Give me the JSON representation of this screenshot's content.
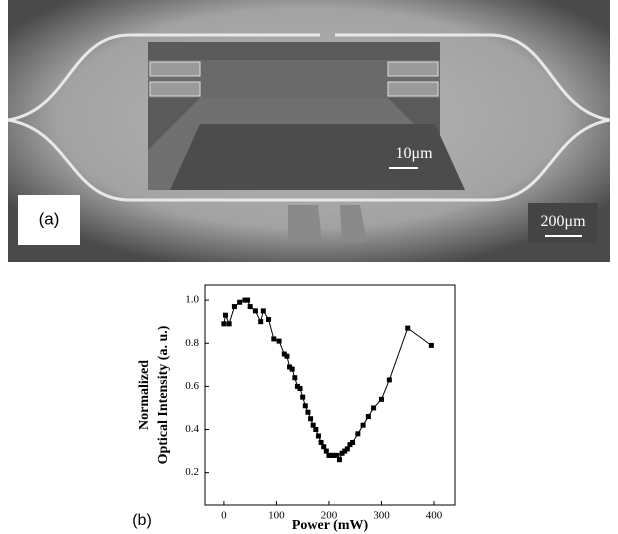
{
  "image": {
    "panel_label": "(a)",
    "inset_scale_label": "10μm",
    "scale_label": "200μm"
  },
  "chart_data": {
    "type": "line",
    "panel_label": "(b)",
    "xlabel": "Power (mW)",
    "ylabel": [
      "Normalized",
      "Optical Intensity (a. u.)"
    ],
    "x": [
      0,
      3,
      10,
      20,
      30,
      40,
      45,
      50,
      60,
      70,
      75,
      85,
      95,
      105,
      115,
      120,
      125,
      130,
      135,
      140,
      145,
      150,
      155,
      160,
      165,
      170,
      175,
      180,
      185,
      190,
      195,
      200,
      205,
      210,
      215,
      220,
      225,
      230,
      235,
      240,
      245,
      255,
      265,
      275,
      285,
      300,
      315,
      350,
      395
    ],
    "series": [
      {
        "name": "Normalized intensity",
        "color": "#000000",
        "values": [
          0.89,
          0.93,
          0.89,
          0.97,
          0.99,
          1.0,
          1.0,
          0.97,
          0.95,
          0.9,
          0.95,
          0.91,
          0.82,
          0.81,
          0.75,
          0.74,
          0.69,
          0.68,
          0.64,
          0.6,
          0.59,
          0.55,
          0.51,
          0.48,
          0.45,
          0.42,
          0.4,
          0.37,
          0.34,
          0.32,
          0.3,
          0.28,
          0.28,
          0.28,
          0.28,
          0.26,
          0.29,
          0.3,
          0.31,
          0.33,
          0.34,
          0.38,
          0.42,
          0.46,
          0.5,
          0.54,
          0.63,
          0.87,
          0.79
        ]
      }
    ],
    "xlim": [
      -36,
      440
    ],
    "ylim": [
      0.05,
      1.07
    ],
    "xticks": [
      0,
      100,
      200,
      300,
      400
    ],
    "yticks": [
      0.2,
      0.4,
      0.6,
      0.8,
      {
        "value": 1,
        "label": "1.0"
      }
    ]
  }
}
